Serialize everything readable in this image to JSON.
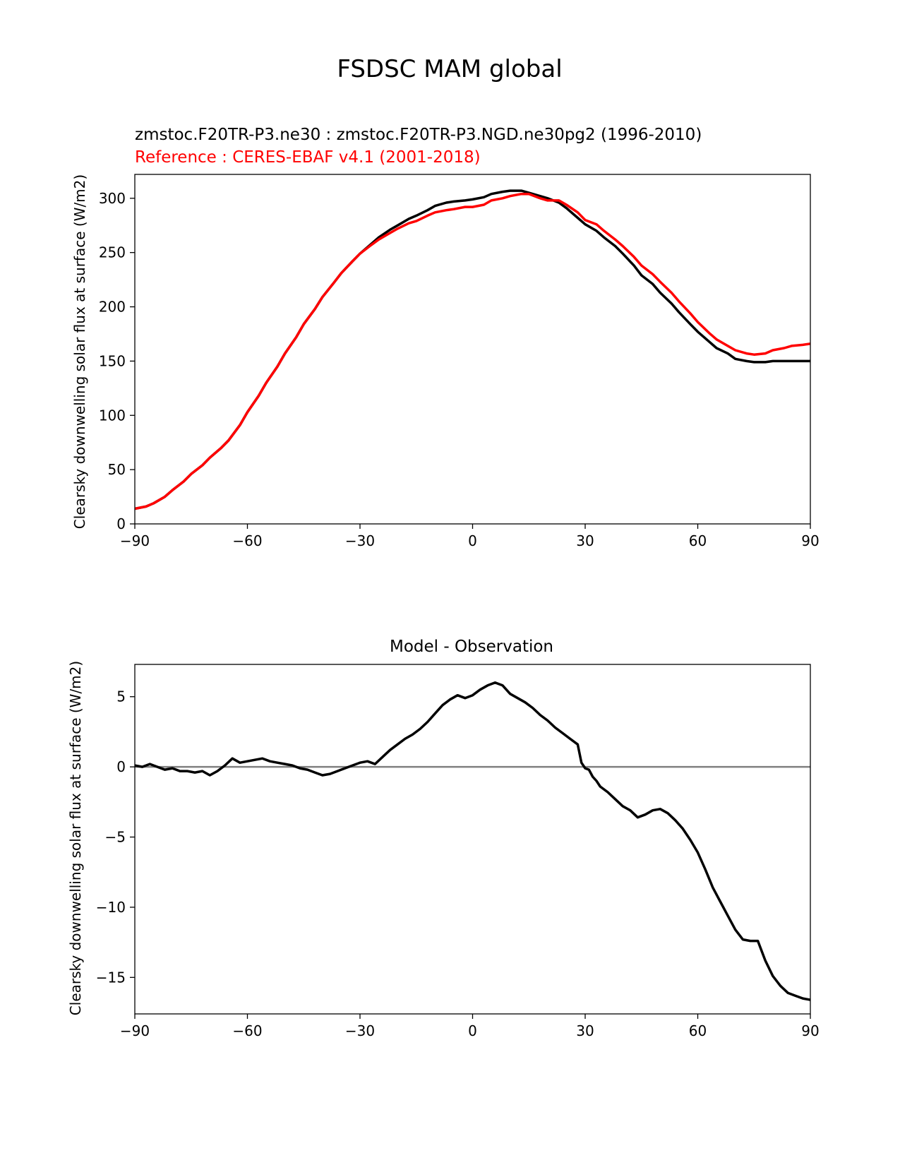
{
  "figure": {
    "title": "FSDSC MAM global"
  },
  "chart_data": [
    {
      "type": "line",
      "title_left": "zmstoc.F20TR-P3.ne30 : zmstoc.F20TR-P3.NGD.ne30pg2 (1996-2010)",
      "title_left_ref": "Reference : CERES-EBAF v4.1 (2001-2018)",
      "xlabel": "",
      "ylabel": "Clearsky downwelling solar flux at surface (W/m2)",
      "xlim": [
        -90,
        90
      ],
      "ylim": [
        0,
        322
      ],
      "xticks": [
        -90,
        -60,
        -30,
        0,
        30,
        60,
        90
      ],
      "xtick_labels": [
        "−90",
        "−60",
        "−30",
        "0",
        "30",
        "60",
        "90"
      ],
      "yticks": [
        0,
        50,
        100,
        150,
        200,
        250,
        300
      ],
      "ytick_labels": [
        "0",
        "50",
        "100",
        "150",
        "200",
        "250",
        "300"
      ],
      "grid": false,
      "series": [
        {
          "color": "#000000",
          "x": [
            -90,
            -87,
            -85,
            -82,
            -80,
            -77,
            -75,
            -72,
            -70,
            -67,
            -65,
            -62,
            -60,
            -57,
            -55,
            -52,
            -50,
            -47,
            -45,
            -42,
            -40,
            -37,
            -35,
            -32,
            -30,
            -27,
            -25,
            -22,
            -20,
            -17,
            -15,
            -12,
            -10,
            -7,
            -5,
            -2,
            0,
            3,
            5,
            8,
            10,
            13,
            15,
            18,
            20,
            23,
            25,
            28,
            30,
            33,
            35,
            38,
            40,
            43,
            45,
            48,
            50,
            53,
            55,
            58,
            60,
            63,
            65,
            68,
            70,
            73,
            75,
            78,
            80,
            83,
            85,
            88,
            90
          ],
          "values": [
            14,
            16,
            19,
            25,
            31,
            39,
            46,
            54,
            61,
            70,
            77,
            91,
            103,
            118,
            130,
            145,
            157,
            172,
            184,
            198,
            209,
            222,
            231,
            242,
            249,
            258,
            264,
            271,
            275,
            281,
            284,
            289,
            293,
            296,
            297,
            298,
            299,
            301,
            304,
            306,
            307,
            307,
            305,
            302,
            300,
            296,
            291,
            282,
            276,
            270,
            264,
            256,
            249,
            238,
            229,
            221,
            213,
            203,
            195,
            184,
            177,
            168,
            162,
            157,
            152,
            150,
            149,
            149,
            150,
            150,
            150,
            150,
            150
          ],
          "role": "model"
        },
        {
          "color": "#ff0000",
          "x": [
            -90,
            -87,
            -85,
            -82,
            -80,
            -77,
            -75,
            -72,
            -70,
            -67,
            -65,
            -62,
            -60,
            -57,
            -55,
            -52,
            -50,
            -47,
            -45,
            -42,
            -40,
            -37,
            -35,
            -32,
            -30,
            -27,
            -25,
            -22,
            -20,
            -17,
            -15,
            -12,
            -10,
            -7,
            -5,
            -2,
            0,
            3,
            5,
            8,
            10,
            13,
            15,
            18,
            20,
            23,
            25,
            28,
            30,
            33,
            35,
            38,
            40,
            43,
            45,
            48,
            50,
            53,
            55,
            58,
            60,
            63,
            65,
            68,
            70,
            73,
            75,
            78,
            80,
            83,
            85,
            88,
            90
          ],
          "values": [
            14,
            16,
            19,
            25,
            31,
            39,
            46,
            54,
            61,
            70,
            77,
            91,
            103,
            118,
            130,
            145,
            157,
            172,
            184,
            198,
            209,
            222,
            231,
            242,
            249,
            257,
            262,
            268,
            272,
            277,
            279,
            284,
            287,
            289,
            290,
            292,
            292,
            294,
            298,
            300,
            302,
            304,
            304,
            300,
            298,
            298,
            294,
            287,
            280,
            276,
            270,
            262,
            256,
            246,
            238,
            230,
            223,
            213,
            205,
            194,
            186,
            176,
            170,
            164,
            160,
            157,
            156,
            157,
            160,
            162,
            164,
            165,
            166
          ],
          "role": "reference"
        }
      ]
    },
    {
      "type": "line",
      "title": "Model - Observation",
      "xlabel": "",
      "ylabel": "Clearsky downwelling solar flux at surface (W/m2)",
      "xlim": [
        -90,
        90
      ],
      "ylim": [
        -17.6,
        7.3
      ],
      "xticks": [
        -90,
        -60,
        -30,
        0,
        30,
        60,
        90
      ],
      "xtick_labels": [
        "−90",
        "−60",
        "−30",
        "0",
        "30",
        "60",
        "90"
      ],
      "yticks": [
        -15,
        -10,
        -5,
        0,
        5
      ],
      "ytick_labels": [
        "−15",
        "−10",
        "−5",
        "0",
        "5"
      ],
      "grid": false,
      "zero_line_color": "#808080",
      "series": [
        {
          "color": "#000000",
          "x": [
            -90,
            -88,
            -86,
            -84,
            -82,
            -80,
            -78,
            -76,
            -74,
            -72,
            -70,
            -68,
            -66,
            -64,
            -62,
            -60,
            -58,
            -56,
            -54,
            -52,
            -50,
            -48,
            -46,
            -44,
            -42,
            -40,
            -38,
            -36,
            -34,
            -32,
            -30,
            -28,
            -26,
            -24,
            -22,
            -20,
            -18,
            -16,
            -14,
            -12,
            -10,
            -8,
            -6,
            -4,
            -2,
            0,
            2,
            4,
            6,
            8,
            10,
            12,
            14,
            16,
            18,
            20,
            22,
            24,
            26,
            28,
            29,
            30,
            31,
            32,
            33,
            34,
            36,
            38,
            40,
            42,
            44,
            46,
            48,
            50,
            52,
            54,
            56,
            58,
            60,
            62,
            64,
            66,
            68,
            70,
            72,
            74,
            76,
            78,
            80,
            82,
            84,
            86,
            88,
            90
          ],
          "values": [
            0.1,
            0.0,
            0.2,
            0.0,
            -0.2,
            -0.1,
            -0.3,
            -0.3,
            -0.4,
            -0.3,
            -0.6,
            -0.3,
            0.1,
            0.6,
            0.3,
            0.4,
            0.5,
            0.6,
            0.4,
            0.3,
            0.2,
            0.1,
            -0.1,
            -0.2,
            -0.4,
            -0.6,
            -0.5,
            -0.3,
            -0.1,
            0.1,
            0.3,
            0.4,
            0.2,
            0.7,
            1.2,
            1.6,
            2.0,
            2.3,
            2.7,
            3.2,
            3.8,
            4.4,
            4.8,
            5.1,
            4.9,
            5.1,
            5.5,
            5.8,
            6.0,
            5.8,
            5.2,
            4.9,
            4.6,
            4.2,
            3.7,
            3.3,
            2.8,
            2.4,
            2.0,
            1.6,
            0.3,
            -0.1,
            -0.2,
            -0.7,
            -1.0,
            -1.4,
            -1.8,
            -2.3,
            -2.8,
            -3.1,
            -3.6,
            -3.4,
            -3.1,
            -3.0,
            -3.3,
            -3.8,
            -4.4,
            -5.2,
            -6.1,
            -7.3,
            -8.6,
            -9.6,
            -10.6,
            -11.6,
            -12.3,
            -12.4,
            -12.4,
            -13.8,
            -14.9,
            -15.6,
            -16.1,
            -16.3,
            -16.5,
            -16.6
          ],
          "role": "difference"
        }
      ]
    }
  ]
}
